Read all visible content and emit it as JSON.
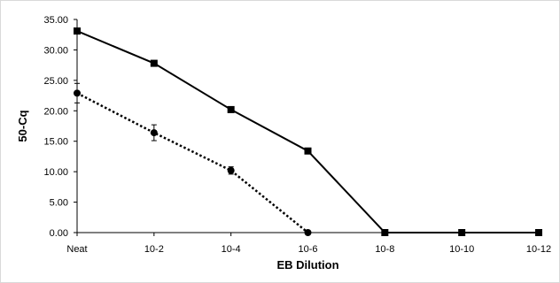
{
  "chart_data": {
    "type": "line",
    "title": "",
    "xlabel": "EB Dilution",
    "ylabel": "50-Cq",
    "categories": [
      "Neat",
      "10-2",
      "10-4",
      "10-6",
      "10-8",
      "10-10",
      "10-12"
    ],
    "ylim": [
      0,
      35
    ],
    "y_ticks": [
      "0.00",
      "5.00",
      "10.00",
      "15.00",
      "20.00",
      "25.00",
      "30.00",
      "35.00"
    ],
    "y_tick_values": [
      0,
      5,
      10,
      15,
      20,
      25,
      30,
      35
    ],
    "grid": false,
    "legend": "none",
    "series": [
      {
        "line_style": "solid",
        "marker": "square",
        "color": "#000000",
        "values": [
          33.1,
          27.8,
          20.2,
          13.4,
          0,
          0,
          0
        ],
        "errors": [
          0.3,
          0.3,
          0.3,
          0.3,
          0,
          0,
          0
        ]
      },
      {
        "line_style": "dotted",
        "marker": "circle",
        "color": "#000000",
        "values": [
          22.9,
          16.4,
          10.2,
          0,
          null,
          null,
          null
        ],
        "errors": [
          1.6,
          1.3,
          0.6,
          0,
          null,
          null,
          null
        ]
      }
    ]
  }
}
